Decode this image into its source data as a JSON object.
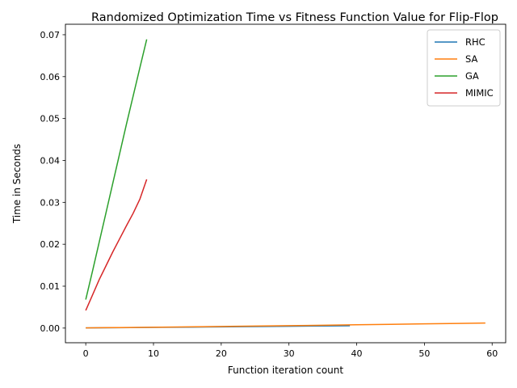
{
  "chart_data": {
    "type": "line",
    "title": "Randomized Optimization Time vs Fitness Function Value for Flip-Flop",
    "xlabel": "Function iteration count",
    "ylabel": "Time in Seconds",
    "xlim": [
      -3,
      62
    ],
    "ylim": [
      -0.0035,
      0.0725
    ],
    "xticks": [
      0,
      10,
      20,
      30,
      40,
      50,
      60
    ],
    "yticks": [
      0.0,
      0.01,
      0.02,
      0.03,
      0.04,
      0.05,
      0.06,
      0.07
    ],
    "ytick_labels": [
      "0.00",
      "0.01",
      "0.02",
      "0.03",
      "0.04",
      "0.05",
      "0.06",
      "0.07"
    ],
    "grid": false,
    "legend_position": "top-right",
    "series": [
      {
        "name": "RHC",
        "color": "#1f77b4",
        "x": [
          0,
          5,
          10,
          15,
          20,
          25,
          30,
          35,
          39
        ],
        "y": [
          5e-05,
          0.0001,
          0.00016,
          0.00022,
          0.00029,
          0.00036,
          0.00043,
          0.0005,
          0.00056
        ]
      },
      {
        "name": "SA",
        "color": "#ff7f0e",
        "x": [
          0,
          5,
          10,
          15,
          20,
          25,
          30,
          35,
          40,
          45,
          50,
          55,
          59
        ],
        "y": [
          5e-05,
          0.00012,
          0.0002,
          0.00029,
          0.00038,
          0.00047,
          0.00057,
          0.00067,
          0.00078,
          0.00089,
          0.001,
          0.00111,
          0.0012
        ]
      },
      {
        "name": "GA",
        "color": "#2ca02c",
        "x": [
          0,
          1,
          2,
          3,
          4,
          5,
          6,
          7,
          8,
          9
        ],
        "y": [
          0.0068,
          0.0136,
          0.0206,
          0.0276,
          0.0346,
          0.0416,
          0.0486,
          0.0554,
          0.0622,
          0.0689
        ]
      },
      {
        "name": "MIMIC",
        "color": "#d62728",
        "x": [
          0,
          1,
          2,
          3,
          4,
          5,
          6,
          7,
          8,
          9
        ],
        "y": [
          0.0042,
          0.0079,
          0.0116,
          0.0149,
          0.0182,
          0.0213,
          0.0244,
          0.0274,
          0.0308,
          0.0355
        ]
      }
    ]
  }
}
